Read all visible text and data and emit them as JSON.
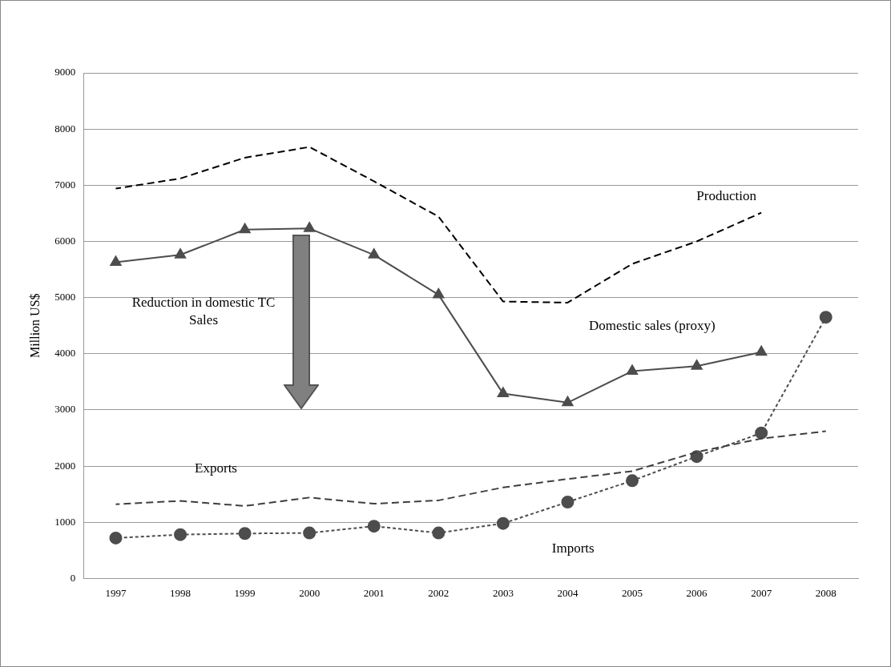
{
  "chart_data": {
    "type": "line",
    "ylabel": "Million US$",
    "categories": [
      "1997",
      "1998",
      "1999",
      "2000",
      "2001",
      "2002",
      "2003",
      "2004",
      "2005",
      "2006",
      "2007",
      "2008"
    ],
    "series": [
      {
        "name": "Production",
        "color": "#000000",
        "line_style": "dashed",
        "marker": "none",
        "values": [
          6940,
          7120,
          7490,
          7680,
          7070,
          6440,
          4930,
          4910,
          5600,
          6000,
          6510,
          null
        ]
      },
      {
        "name": "Domestic sales (proxy)",
        "color": "#4d4d4d",
        "line_style": "solid",
        "marker": "triangle",
        "values": [
          5630,
          5760,
          6210,
          6230,
          5760,
          5050,
          3290,
          3130,
          3690,
          3780,
          4030,
          null
        ]
      },
      {
        "name": "Exports",
        "color": "#3f3f3f",
        "line_style": "dashed",
        "marker": "none",
        "values": [
          1320,
          1380,
          1290,
          1440,
          1330,
          1390,
          1620,
          1770,
          1910,
          2250,
          2490,
          2620
        ]
      },
      {
        "name": "Imports",
        "color": "#4d4d4d",
        "line_style": "dotted",
        "marker": "circle",
        "values": [
          720,
          780,
          800,
          810,
          930,
          810,
          980,
          1360,
          1740,
          2170,
          2590,
          4650
        ]
      }
    ],
    "annotations": [
      "Reduction in domestic TC Sales"
    ],
    "ylim": [
      0,
      9000
    ],
    "yticks": [
      0,
      1000,
      2000,
      3000,
      4000,
      5000,
      6000,
      7000,
      8000,
      9000
    ],
    "grid": "y",
    "legend": false
  }
}
